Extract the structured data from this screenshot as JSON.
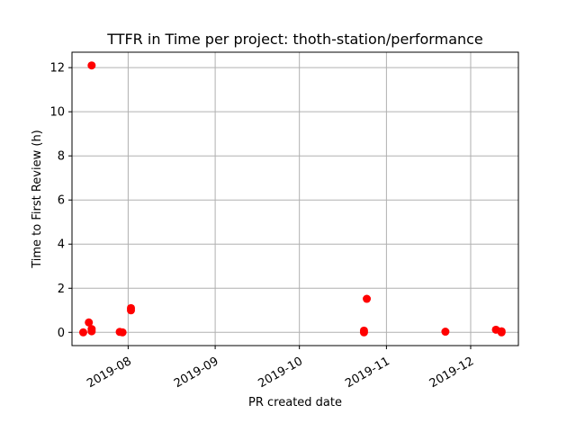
{
  "chart_data": {
    "type": "scatter",
    "title": "TTFR in Time per project: thoth-station/performance",
    "xlabel": "PR created date",
    "ylabel": "Time to First Review (h)",
    "x_axis_type": "date",
    "xlim": [
      "2019-07-12",
      "2019-12-18"
    ],
    "ylim": [
      -0.6,
      12.7
    ],
    "x_ticks": [
      "2019-08-01",
      "2019-09-01",
      "2019-10-01",
      "2019-11-01",
      "2019-12-01"
    ],
    "x_tick_labels": [
      "2019-08",
      "2019-09",
      "2019-10",
      "2019-11",
      "2019-12"
    ],
    "y_ticks": [
      0,
      2,
      4,
      6,
      8,
      10,
      12
    ],
    "y_tick_labels": [
      "0",
      "2",
      "4",
      "6",
      "8",
      "10",
      "12"
    ],
    "grid": true,
    "marker_color": "#ff0000",
    "series": [
      {
        "points": [
          {
            "x": "2019-07-16",
            "y": 0.0
          },
          {
            "x": "2019-07-18",
            "y": 0.45
          },
          {
            "x": "2019-07-19",
            "y": 12.1
          },
          {
            "x": "2019-07-19",
            "y": 0.15
          },
          {
            "x": "2019-07-19",
            "y": 0.05
          },
          {
            "x": "2019-07-29",
            "y": 0.02
          },
          {
            "x": "2019-07-30",
            "y": 0.0
          },
          {
            "x": "2019-08-02",
            "y": 1.1
          },
          {
            "x": "2019-08-02",
            "y": 1.0
          },
          {
            "x": "2019-10-24",
            "y": 0.08
          },
          {
            "x": "2019-10-24",
            "y": 0.0
          },
          {
            "x": "2019-10-25",
            "y": 1.52
          },
          {
            "x": "2019-11-22",
            "y": 0.03
          },
          {
            "x": "2019-12-10",
            "y": 0.12
          },
          {
            "x": "2019-12-12",
            "y": 0.05
          },
          {
            "x": "2019-12-12",
            "y": 0.0
          }
        ]
      }
    ]
  }
}
